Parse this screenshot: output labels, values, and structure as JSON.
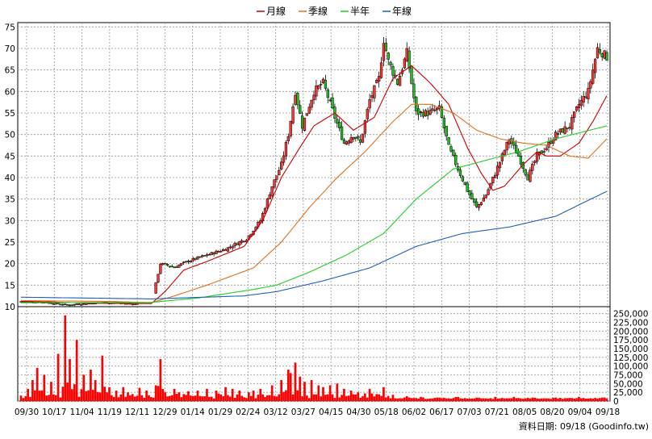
{
  "legend": [
    {
      "name": "月線",
      "color": "#cc0000"
    },
    {
      "name": "季線",
      "color": "#e07020"
    },
    {
      "name": "半年",
      "color": "#22cc22"
    },
    {
      "name": "年線",
      "color": "#1f5fc0"
    }
  ],
  "footer": {
    "source": "資料日期: 09/18 (Goodinfo.tw)"
  },
  "chart_data": [
    {
      "type": "candlestick",
      "ylim": [
        10,
        76
      ],
      "y_ticks": [
        10,
        15,
        20,
        25,
        30,
        35,
        40,
        45,
        50,
        55,
        60,
        65,
        70,
        75
      ],
      "grid": true,
      "legend_position": "top-center",
      "up_color": "#ff3333",
      "down_color": "#22bb22",
      "x_labels": [
        "09/30",
        "10/17",
        "11/04",
        "11/19",
        "12/11",
        "12/29",
        "01/14",
        "01/29",
        "02/24",
        "03/12",
        "03/27",
        "04/15",
        "04/30",
        "05/18",
        "06/02",
        "06/17",
        "07/03",
        "07/21",
        "08/05",
        "08/20",
        "09/04",
        "09/18"
      ],
      "close_keyframes": [
        [
          0,
          11.2
        ],
        [
          10,
          11.0
        ],
        [
          20,
          10.4
        ],
        [
          35,
          11.0
        ],
        [
          50,
          10.6
        ],
        [
          56,
          10.8
        ],
        [
          60,
          20.0
        ],
        [
          66,
          19.2
        ],
        [
          72,
          20.6
        ],
        [
          80,
          22.0
        ],
        [
          88,
          23.4
        ],
        [
          97,
          25.8
        ],
        [
          103,
          30.0
        ],
        [
          108,
          38.0
        ],
        [
          112,
          43.0
        ],
        [
          115,
          50.0
        ],
        [
          118,
          60.0
        ],
        [
          121,
          52.0
        ],
        [
          126,
          60.0
        ],
        [
          130,
          62.0
        ],
        [
          135,
          54.0
        ],
        [
          139,
          48.0
        ],
        [
          143,
          50.0
        ],
        [
          146,
          48.0
        ],
        [
          150,
          58.0
        ],
        [
          154,
          63.0
        ],
        [
          156,
          72.0
        ],
        [
          158,
          67.0
        ],
        [
          162,
          62.0
        ],
        [
          166,
          69.0
        ],
        [
          170,
          55.0
        ],
        [
          175,
          55.0
        ],
        [
          180,
          56.0
        ],
        [
          184,
          47.0
        ],
        [
          188,
          42.0
        ],
        [
          192,
          37.0
        ],
        [
          196,
          33.0
        ],
        [
          200,
          36.0
        ],
        [
          204,
          41.0
        ],
        [
          210,
          49.0
        ],
        [
          214,
          45.0
        ],
        [
          218,
          40.0
        ],
        [
          222,
          45.0
        ],
        [
          226,
          47.0
        ],
        [
          230,
          50.0
        ],
        [
          236,
          52.0
        ],
        [
          240,
          57.0
        ],
        [
          244,
          60.0
        ],
        [
          248,
          70.0
        ],
        [
          252,
          68.0
        ]
      ],
      "series": [
        {
          "name": "月線",
          "keyframes": [
            [
              0,
              11.3
            ],
            [
              30,
              10.8
            ],
            [
              56,
              10.7
            ],
            [
              62,
              13.5
            ],
            [
              70,
              18.5
            ],
            [
              80,
              20.5
            ],
            [
              96,
              24.0
            ],
            [
              104,
              30.0
            ],
            [
              112,
              40.0
            ],
            [
              120,
              47.0
            ],
            [
              126,
              52.0
            ],
            [
              135,
              55.0
            ],
            [
              143,
              51.0
            ],
            [
              152,
              54.0
            ],
            [
              160,
              63.0
            ],
            [
              168,
              66.0
            ],
            [
              176,
              62.0
            ],
            [
              184,
              57.0
            ],
            [
              192,
              47.0
            ],
            [
              198,
              41.0
            ],
            [
              203,
              37.0
            ],
            [
              208,
              38.0
            ],
            [
              216,
              43.0
            ],
            [
              222,
              46.0
            ],
            [
              226,
              45.0
            ],
            [
              232,
              45.0
            ],
            [
              240,
              48.0
            ],
            [
              246,
              53.0
            ],
            [
              252,
              59.0
            ]
          ]
        },
        {
          "name": "季線",
          "keyframes": [
            [
              0,
              11.4
            ],
            [
              40,
              11.2
            ],
            [
              56,
              10.9
            ],
            [
              66,
              12.5
            ],
            [
              80,
              15.0
            ],
            [
              100,
              19.0
            ],
            [
              112,
              25.0
            ],
            [
              124,
              33.0
            ],
            [
              136,
              40.0
            ],
            [
              148,
              46.0
            ],
            [
              160,
              53.0
            ],
            [
              168,
              57.0
            ],
            [
              176,
              57.0
            ],
            [
              186,
              55.0
            ],
            [
              196,
              51.0
            ],
            [
              206,
              49.0
            ],
            [
              216,
              48.0
            ],
            [
              226,
              47.5
            ],
            [
              236,
              45.0
            ],
            [
              244,
              44.5
            ],
            [
              252,
              49.0
            ]
          ]
        },
        {
          "name": "半年",
          "keyframes": [
            [
              0,
              10.9
            ],
            [
              56,
              11.0
            ],
            [
              76,
              12.0
            ],
            [
              100,
              14.0
            ],
            [
              110,
              15.0
            ],
            [
              124,
              18.0
            ],
            [
              140,
              22.0
            ],
            [
              156,
              27.0
            ],
            [
              170,
              35.0
            ],
            [
              186,
              42.0
            ],
            [
              200,
              44.0
            ],
            [
              214,
              46.0
            ],
            [
              230,
              49.0
            ],
            [
              252,
              52.0
            ]
          ]
        },
        {
          "name": "年線",
          "keyframes": [
            [
              0,
              12.2
            ],
            [
              56,
              11.8
            ],
            [
              96,
              12.5
            ],
            [
              110,
              13.5
            ],
            [
              130,
              16.0
            ],
            [
              150,
              19.0
            ],
            [
              170,
              24.0
            ],
            [
              190,
              27.0
            ],
            [
              210,
              28.5
            ],
            [
              230,
              31.0
            ],
            [
              252,
              36.8
            ]
          ]
        }
      ]
    },
    {
      "type": "bar",
      "ylim": [
        0,
        270000
      ],
      "y_ticks": [
        0,
        25000,
        50000,
        75000,
        100000,
        125000,
        150000,
        175000,
        200000,
        225000,
        250000
      ],
      "y_tick_labels": [
        "0",
        "25,000",
        "50,000",
        "75,000",
        "100,000",
        "125,000",
        "150,000",
        "175,000",
        "200,000",
        "225,000",
        "250,000"
      ],
      "grid": true,
      "color": "#ff0000",
      "spikes": [
        [
          3,
          35000
        ],
        [
          5,
          60000
        ],
        [
          7,
          95000
        ],
        [
          10,
          75000
        ],
        [
          13,
          55000
        ],
        [
          16,
          135000
        ],
        [
          19,
          245000
        ],
        [
          21,
          120000
        ],
        [
          24,
          175000
        ],
        [
          27,
          75000
        ],
        [
          30,
          90000
        ],
        [
          32,
          60000
        ],
        [
          35,
          130000
        ],
        [
          38,
          40000
        ],
        [
          41,
          30000
        ],
        [
          44,
          40000
        ],
        [
          46,
          25000
        ],
        [
          48,
          20000
        ],
        [
          51,
          38000
        ],
        [
          54,
          30000
        ],
        [
          58,
          45000
        ],
        [
          60,
          120000
        ],
        [
          62,
          25000
        ],
        [
          66,
          35000
        ],
        [
          68,
          25000
        ],
        [
          70,
          20000
        ],
        [
          72,
          28000
        ],
        [
          76,
          30000
        ],
        [
          80,
          35000
        ],
        [
          84,
          30000
        ],
        [
          88,
          40000
        ],
        [
          91,
          35000
        ],
        [
          94,
          30000
        ],
        [
          98,
          25000
        ],
        [
          100,
          30000
        ],
        [
          103,
          35000
        ],
        [
          108,
          45000
        ],
        [
          112,
          60000
        ],
        [
          115,
          90000
        ],
        [
          116,
          80000
        ],
        [
          118,
          110000
        ],
        [
          120,
          70000
        ],
        [
          122,
          55000
        ],
        [
          125,
          60000
        ],
        [
          128,
          45000
        ],
        [
          130,
          40000
        ],
        [
          133,
          45000
        ],
        [
          136,
          50000
        ],
        [
          139,
          35000
        ],
        [
          142,
          30000
        ],
        [
          145,
          25000
        ],
        [
          148,
          22000
        ],
        [
          150,
          35000
        ],
        [
          153,
          20000
        ],
        [
          156,
          40000
        ],
        [
          160,
          18000
        ],
        [
          166,
          14000
        ],
        [
          172,
          12000
        ],
        [
          180,
          10000
        ],
        [
          188,
          12000
        ],
        [
          196,
          10000
        ],
        [
          204,
          12000
        ],
        [
          212,
          12000
        ],
        [
          220,
          10000
        ],
        [
          230,
          10000
        ],
        [
          240,
          12000
        ],
        [
          250,
          10000
        ]
      ],
      "base_volume": 6000,
      "sample_values": [
        {
          "date": "10/17",
          "volume": 245000
        },
        {
          "date": "03/12",
          "volume": 110000
        }
      ]
    }
  ]
}
